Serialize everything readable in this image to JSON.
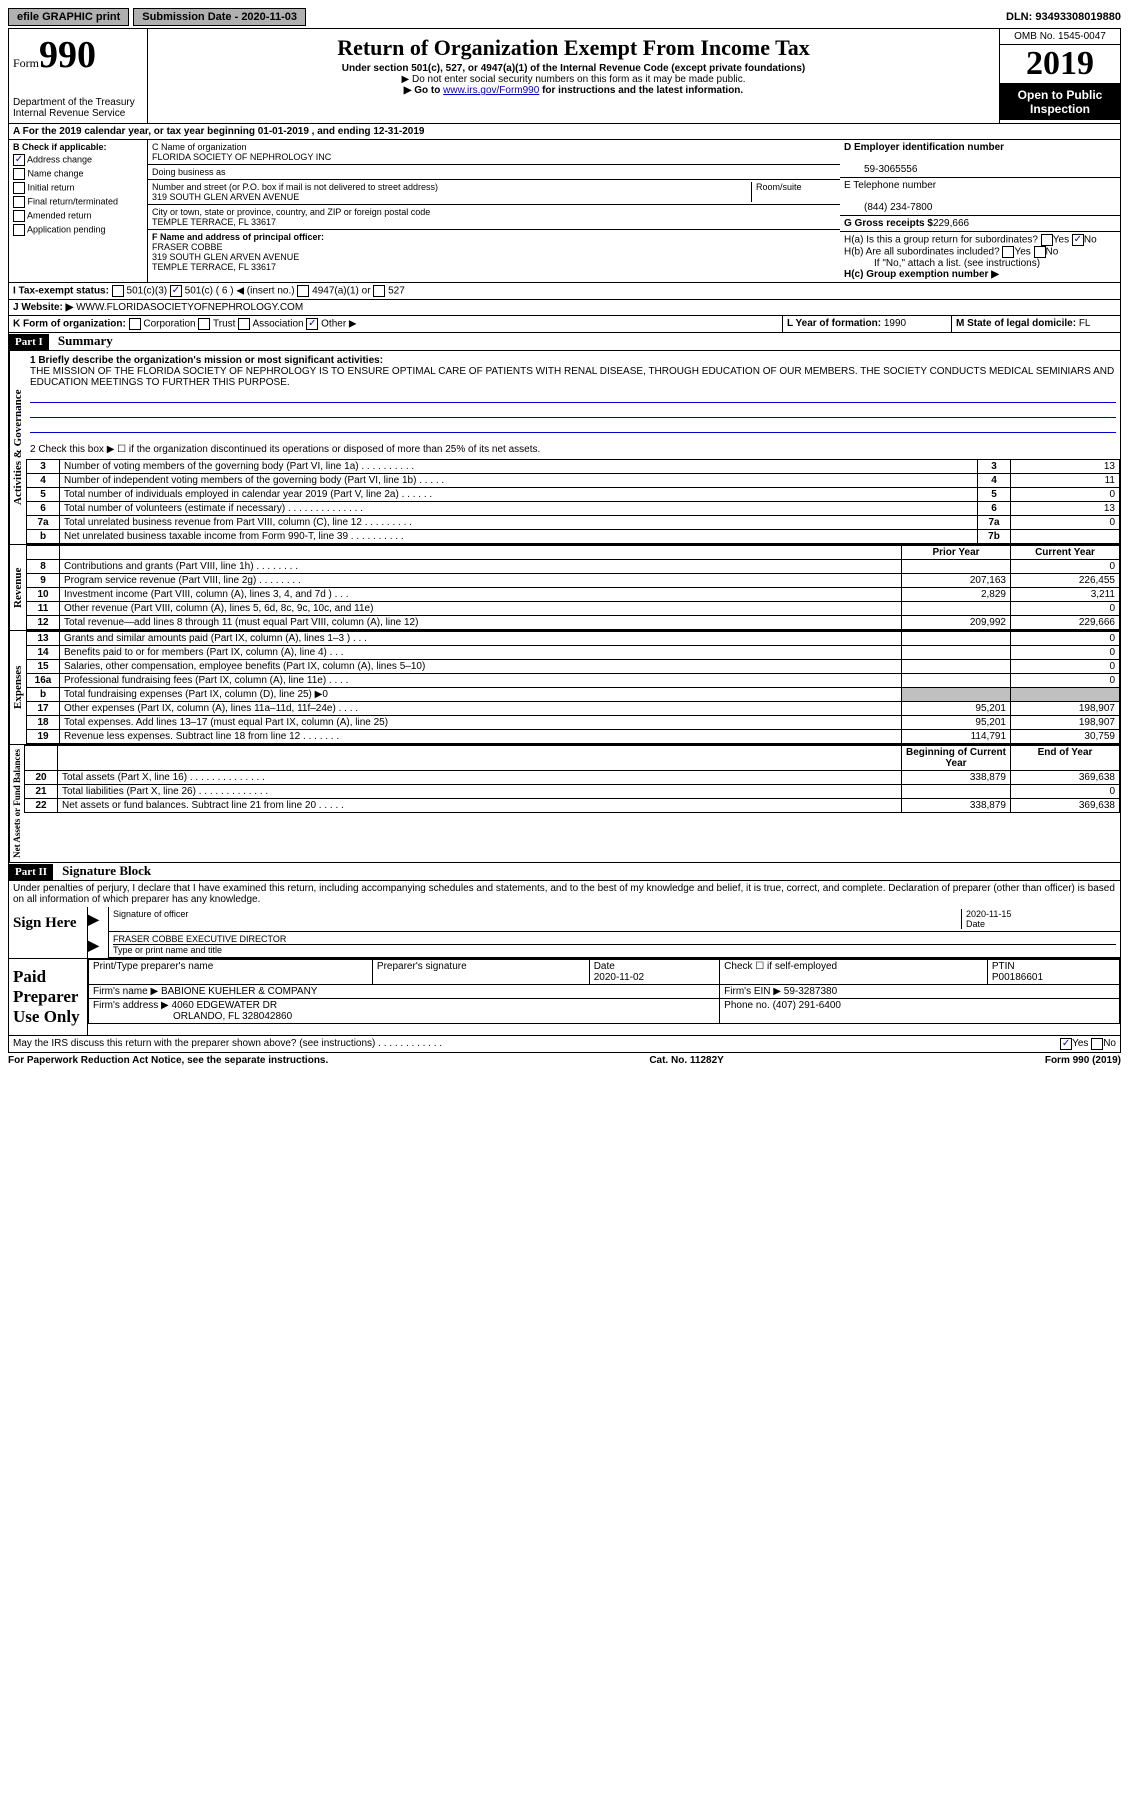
{
  "topbar": {
    "efile": "efile GRAPHIC print",
    "submission": "Submission Date - 2020-11-03",
    "dln": "DLN: 93493308019880"
  },
  "header": {
    "form_label": "Form",
    "form_number": "990",
    "dept": "Department of the Treasury\nInternal Revenue Service",
    "title": "Return of Organization Exempt From Income Tax",
    "subtitle": "Under section 501(c), 527, or 4947(a)(1) of the Internal Revenue Code (except private foundations)",
    "note1": "▶ Do not enter social security numbers on this form as it may be made public.",
    "note2_prefix": "▶ Go to ",
    "note2_link": "www.irs.gov/Form990",
    "note2_suffix": " for instructions and the latest information.",
    "omb": "OMB No. 1545-0047",
    "year": "2019",
    "open": "Open to Public Inspection"
  },
  "section_a": "A For the 2019 calendar year, or tax year beginning 01-01-2019   , and ending 12-31-2019",
  "checkboxes": {
    "label": "B Check if applicable:",
    "items": [
      {
        "label": "Address change",
        "checked": true
      },
      {
        "label": "Name change",
        "checked": false
      },
      {
        "label": "Initial return",
        "checked": false
      },
      {
        "label": "Final return/terminated",
        "checked": false
      },
      {
        "label": "Amended return",
        "checked": false
      },
      {
        "label": "Application pending",
        "checked": false
      }
    ]
  },
  "entity": {
    "name_label": "C Name of organization",
    "name": "FLORIDA SOCIETY OF NEPHROLOGY INC",
    "dba_label": "Doing business as",
    "dba": "",
    "street_label": "Number and street (or P.O. box if mail is not delivered to street address)",
    "room_label": "Room/suite",
    "street": "319 SOUTH GLEN ARVEN AVENUE",
    "city_label": "City or town, state or province, country, and ZIP or foreign postal code",
    "city": "TEMPLE TERRACE, FL  33617",
    "officer_label": "F Name and address of principal officer:",
    "officer_name": "FRASER COBBE",
    "officer_addr1": "319 SOUTH GLEN ARVEN AVENUE",
    "officer_addr2": "TEMPLE TERRACE, FL  33617"
  },
  "right": {
    "ein_label": "D Employer identification number",
    "ein": "59-3065556",
    "phone_label": "E Telephone number",
    "phone": "(844) 234-7800",
    "gross_label": "G Gross receipts $",
    "gross": "229,666",
    "ha_label": "H(a)  Is this a group return for subordinates?",
    "hb_label": "H(b)  Are all subordinates included?",
    "hb_note": "If \"No,\" attach a list. (see instructions)",
    "hc_label": "H(c)  Group exemption number ▶",
    "yes": "Yes",
    "no": "No"
  },
  "tax_status": {
    "label": "I  Tax-exempt status:",
    "opt1": "501(c)(3)",
    "opt2": "501(c) ( 6 ) ◀ (insert no.)",
    "opt3": "4947(a)(1) or",
    "opt4": "527"
  },
  "website": {
    "label": "J  Website: ▶",
    "value": "WWW.FLORIDASOCIETYOFNEPHROLOGY.COM"
  },
  "k_line": {
    "label": "K Form of organization:",
    "corp": "Corporation",
    "trust": "Trust",
    "assoc": "Association",
    "other": "Other ▶"
  },
  "l_line": {
    "year_label": "L Year of formation:",
    "year": "1990",
    "state_label": "M State of legal domicile:",
    "state": "FL"
  },
  "part1": {
    "label": "Part I",
    "title": "Summary",
    "mission_label": "1  Briefly describe the organization's mission or most significant activities:",
    "mission": "THE MISSION OF THE FLORIDA SOCIETY OF NEPHROLOGY IS TO ENSURE OPTIMAL CARE OF PATIENTS WITH RENAL DISEASE, THROUGH EDUCATION OF OUR MEMBERS. THE SOCIETY CONDUCTS MEDICAL SEMINIARS AND EDUCATION MEETINGS TO FURTHER THIS PURPOSE.",
    "line2": "2  Check this box ▶ ☐ if the organization discontinued its operations or disposed of more than 25% of its net assets."
  },
  "governance_rows": [
    {
      "n": "3",
      "desc": "Number of voting members of the governing body (Part VI, line 1a)  .  .  .  .  .  .  .  .  .  .",
      "box": "3",
      "val": "13"
    },
    {
      "n": "4",
      "desc": "Number of independent voting members of the governing body (Part VI, line 1b)  .  .  .  .  .",
      "box": "4",
      "val": "11"
    },
    {
      "n": "5",
      "desc": "Total number of individuals employed in calendar year 2019 (Part V, line 2a)  .  .  .  .  .  .",
      "box": "5",
      "val": "0"
    },
    {
      "n": "6",
      "desc": "Total number of volunteers (estimate if necessary)  .  .  .  .  .  .  .  .  .  .  .  .  .  .",
      "box": "6",
      "val": "13"
    },
    {
      "n": "7a",
      "desc": "Total unrelated business revenue from Part VIII, column (C), line 12  .  .  .  .  .  .  .  .  .",
      "box": "7a",
      "val": "0"
    },
    {
      "n": "b",
      "desc": "Net unrelated business taxable income from Form 990-T, line 39  .  .  .  .  .  .  .  .  .  .",
      "box": "7b",
      "val": ""
    }
  ],
  "col_headers": {
    "prior": "Prior Year",
    "current": "Current Year",
    "begin": "Beginning of Current Year",
    "end": "End of Year"
  },
  "revenue_rows": [
    {
      "n": "8",
      "desc": "Contributions and grants (Part VIII, line 1h)  .  .  .  .  .  .  .  .",
      "prior": "",
      "current": "0"
    },
    {
      "n": "9",
      "desc": "Program service revenue (Part VIII, line 2g)  .  .  .  .  .  .  .  .",
      "prior": "207,163",
      "current": "226,455"
    },
    {
      "n": "10",
      "desc": "Investment income (Part VIII, column (A), lines 3, 4, and 7d )  .  .  .",
      "prior": "2,829",
      "current": "3,211"
    },
    {
      "n": "11",
      "desc": "Other revenue (Part VIII, column (A), lines 5, 6d, 8c, 9c, 10c, and 11e)",
      "prior": "",
      "current": "0"
    },
    {
      "n": "12",
      "desc": "Total revenue—add lines 8 through 11 (must equal Part VIII, column (A), line 12)",
      "prior": "209,992",
      "current": "229,666"
    }
  ],
  "expense_rows": [
    {
      "n": "13",
      "desc": "Grants and similar amounts paid (Part IX, column (A), lines 1–3 )  .  .  .",
      "prior": "",
      "current": "0"
    },
    {
      "n": "14",
      "desc": "Benefits paid to or for members (Part IX, column (A), line 4)  .  .  .",
      "prior": "",
      "current": "0"
    },
    {
      "n": "15",
      "desc": "Salaries, other compensation, employee benefits (Part IX, column (A), lines 5–10)",
      "prior": "",
      "current": "0"
    },
    {
      "n": "16a",
      "desc": "Professional fundraising fees (Part IX, column (A), line 11e)  .  .  .  .",
      "prior": "",
      "current": "0"
    },
    {
      "n": "b",
      "desc": "Total fundraising expenses (Part IX, column (D), line 25) ▶0",
      "prior": "shaded",
      "current": "shaded"
    },
    {
      "n": "17",
      "desc": "Other expenses (Part IX, column (A), lines 11a–11d, 11f–24e)  .  .  .  .",
      "prior": "95,201",
      "current": "198,907"
    },
    {
      "n": "18",
      "desc": "Total expenses. Add lines 13–17 (must equal Part IX, column (A), line 25)",
      "prior": "95,201",
      "current": "198,907"
    },
    {
      "n": "19",
      "desc": "Revenue less expenses. Subtract line 18 from line 12  .  .  .  .  .  .  .",
      "prior": "114,791",
      "current": "30,759"
    }
  ],
  "netassets_rows": [
    {
      "n": "20",
      "desc": "Total assets (Part X, line 16)  .  .  .  .  .  .  .  .  .  .  .  .  .  .",
      "prior": "338,879",
      "current": "369,638"
    },
    {
      "n": "21",
      "desc": "Total liabilities (Part X, line 26)  .  .  .  .  .  .  .  .  .  .  .  .  .",
      "prior": "",
      "current": "0"
    },
    {
      "n": "22",
      "desc": "Net assets or fund balances. Subtract line 21 from line 20  .  .  .  .  .",
      "prior": "338,879",
      "current": "369,638"
    }
  ],
  "vert_labels": {
    "gov": "Activities & Governance",
    "rev": "Revenue",
    "exp": "Expenses",
    "net": "Net Assets or Fund Balances"
  },
  "part2": {
    "label": "Part II",
    "title": "Signature Block",
    "decl": "Under penalties of perjury, I declare that I have examined this return, including accompanying schedules and statements, and to the best of my knowledge and belief, it is true, correct, and complete. Declaration of preparer (other than officer) is based on all information of which preparer has any knowledge."
  },
  "sign": {
    "label": "Sign Here",
    "sig_label": "Signature of officer",
    "date": "2020-11-15",
    "date_label": "Date",
    "name": "FRASER COBBE  EXECUTIVE DIRECTOR",
    "name_label": "Type or print name and title"
  },
  "paid": {
    "label": "Paid Preparer Use Only",
    "print_label": "Print/Type preparer's name",
    "sig_label": "Preparer's signature",
    "date_label": "Date",
    "date": "2020-11-02",
    "check_label": "Check ☐ if self-employed",
    "ptin_label": "PTIN",
    "ptin": "P00186601",
    "firm_label": "Firm's name  ▶",
    "firm": "BABIONE KUEHLER & COMPANY",
    "ein_label": "Firm's EIN ▶",
    "ein": "59-3287380",
    "addr_label": "Firm's address ▶",
    "addr1": "4060 EDGEWATER DR",
    "addr2": "ORLANDO, FL  328042860",
    "phone_label": "Phone no.",
    "phone": "(407) 291-6400",
    "discuss": "May the IRS discuss this return with the preparer shown above? (see instructions)  .  .  .  .  .  .  .  .  .  .  .  ."
  },
  "footer": {
    "left": "For Paperwork Reduction Act Notice, see the separate instructions.",
    "center": "Cat. No. 11282Y",
    "right": "Form 990 (2019)"
  }
}
